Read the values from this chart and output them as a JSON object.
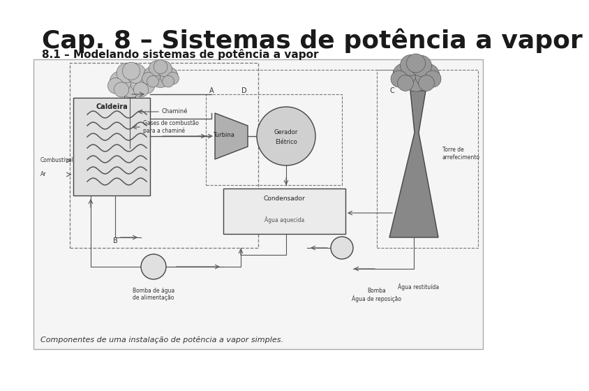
{
  "title": "Cap. 8 – Sistemas de potência a vapor",
  "subtitle": "8.1 – Modelando sistemas de potência a vapor",
  "title_fontsize": 26,
  "subtitle_fontsize": 11,
  "background_color": "#ffffff",
  "diagram_caption": "Componentes de uma instalação de potência a vapor simples.",
  "diagram_caption_fontsize": 8,
  "box_color": "#cccccc",
  "line_color": "#555555",
  "fill_light": "#d8d8d8",
  "fill_dark": "#999999",
  "text_color": "#333333"
}
